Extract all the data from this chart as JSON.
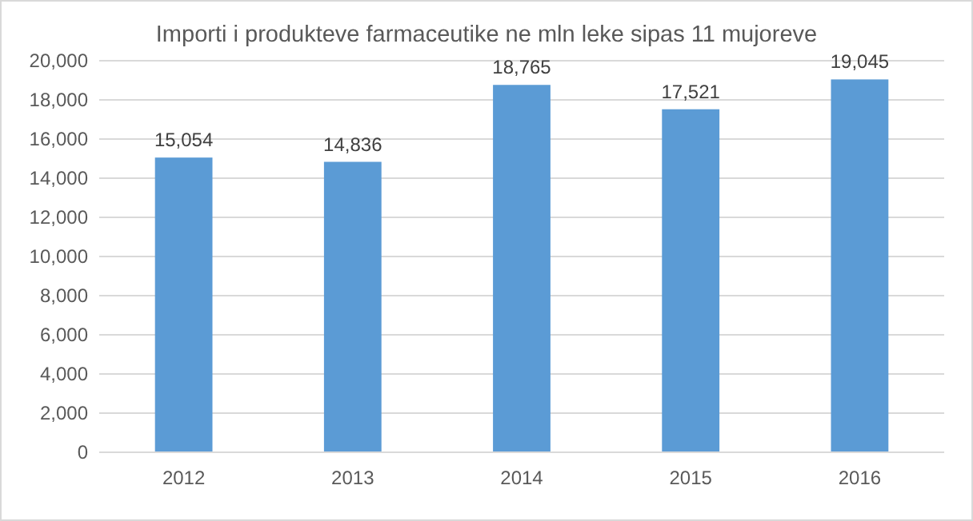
{
  "chart_data": {
    "type": "bar",
    "title": "Importi i produkteve farmaceutike ne mln leke sipas 11 mujoreve",
    "categories": [
      "2012",
      "2013",
      "2014",
      "2015",
      "2016"
    ],
    "values": [
      15054,
      14836,
      18765,
      17521,
      19045
    ],
    "color": "#5b9bd5",
    "ylim": [
      0,
      20000
    ],
    "yticks": [
      {
        "value": 0,
        "label": "0"
      },
      {
        "value": 2000,
        "label": "2,000"
      },
      {
        "value": 4000,
        "label": "4,000"
      },
      {
        "value": 6000,
        "label": "6,000"
      },
      {
        "value": 8000,
        "label": "8,000"
      },
      {
        "value": 10000,
        "label": "10,000"
      },
      {
        "value": 12000,
        "label": "12,000"
      },
      {
        "value": 14000,
        "label": "14,000"
      },
      {
        "value": 16000,
        "label": "16,000"
      },
      {
        "value": 18000,
        "label": "18,000"
      },
      {
        "value": 20000,
        "label": "20,000"
      }
    ],
    "grid": "y",
    "value_labels": [
      "15,054",
      "14,836",
      "18,765",
      "17,521",
      "19,045"
    ]
  }
}
